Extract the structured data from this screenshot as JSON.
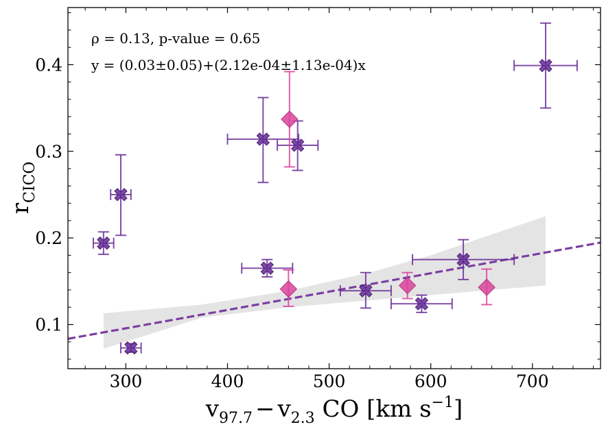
{
  "chart_data": {
    "type": "scatter",
    "xlabel": {
      "main": "v",
      "sub1": "97.7",
      "minus": "−",
      "main2": "v",
      "sub2": "2.3",
      "rest": " CO [km s",
      "exp": "−1",
      "close": "]"
    },
    "ylabel": {
      "main": "r",
      "sub": "CICO"
    },
    "xlim": [
      243,
      767
    ],
    "ylim": [
      0.049,
      0.466
    ],
    "xticks": [
      300,
      400,
      500,
      600,
      700
    ],
    "yticks": [
      0.1,
      0.2,
      0.3,
      0.4
    ],
    "xtick_labels": [
      "300",
      "400",
      "500",
      "600",
      "700"
    ],
    "ytick_labels": [
      "0.1",
      "0.2",
      "0.3",
      "0.4"
    ],
    "grid": false,
    "annotations": [
      "ρ = 0.13, p-value = 0.65",
      "y = (0.03±0.05)+(2.12e-04±1.13e-04)x"
    ],
    "fit_line": {
      "slope": 0.000212,
      "intercept": 0.032,
      "color": "#7b3fa0"
    },
    "confidence_band": {
      "color": "#e4e4e4",
      "x": [
        278,
        375,
        460,
        540,
        600,
        650,
        713
      ],
      "upper": [
        0.113,
        0.123,
        0.139,
        0.16,
        0.18,
        0.2,
        0.225
      ],
      "lower": [
        0.072,
        0.108,
        0.12,
        0.128,
        0.134,
        0.139,
        0.145
      ]
    },
    "series": [
      {
        "marker": "X",
        "color": "#6a2f9a",
        "points": [
          {
            "x": 278,
            "y": 0.194,
            "xerr": [
              10,
              10
            ],
            "yerr": [
              0.013,
              0.013
            ]
          },
          {
            "x": 295,
            "y": 0.25,
            "xerr": [
              10,
              10
            ],
            "yerr": [
              0.047,
              0.046
            ]
          },
          {
            "x": 305,
            "y": 0.073,
            "xerr": [
              10,
              10
            ],
            "yerr": [
              0.005,
              0.005
            ]
          },
          {
            "x": 435,
            "y": 0.314,
            "xerr": [
              35,
              35
            ],
            "yerr": [
              0.05,
              0.048
            ]
          },
          {
            "x": 469,
            "y": 0.307,
            "xerr": [
              20,
              20
            ],
            "yerr": [
              0.029,
              0.028
            ]
          },
          {
            "x": 439,
            "y": 0.165,
            "xerr": [
              25,
              25
            ],
            "yerr": [
              0.01,
              0.01
            ]
          },
          {
            "x": 536,
            "y": 0.139,
            "xerr": [
              25,
              25
            ],
            "yerr": [
              0.02,
              0.021
            ]
          },
          {
            "x": 591,
            "y": 0.124,
            "xerr": [
              30,
              30
            ],
            "yerr": [
              0.01,
              0.01
            ]
          },
          {
            "x": 632,
            "y": 0.175,
            "xerr": [
              50,
              50
            ],
            "yerr": [
              0.023,
              0.023
            ]
          },
          {
            "x": 713,
            "y": 0.399,
            "xerr": [
              31,
              31
            ],
            "yerr": [
              0.049,
              0.049
            ]
          }
        ]
      },
      {
        "marker": "D",
        "color": "#d9449c",
        "points": [
          {
            "x": 461,
            "y": 0.337,
            "xerr": [
              0,
              0
            ],
            "yerr": [
              0.055,
              0.055
            ]
          },
          {
            "x": 460,
            "y": 0.141,
            "xerr": [
              0,
              0
            ],
            "yerr": [
              0.02,
              0.022
            ]
          },
          {
            "x": 577,
            "y": 0.145,
            "xerr": [
              0,
              0
            ],
            "yerr": [
              0.015,
              0.015
            ]
          },
          {
            "x": 655,
            "y": 0.143,
            "xerr": [
              0,
              0
            ],
            "yerr": [
              0.02,
              0.021
            ]
          }
        ]
      }
    ]
  }
}
